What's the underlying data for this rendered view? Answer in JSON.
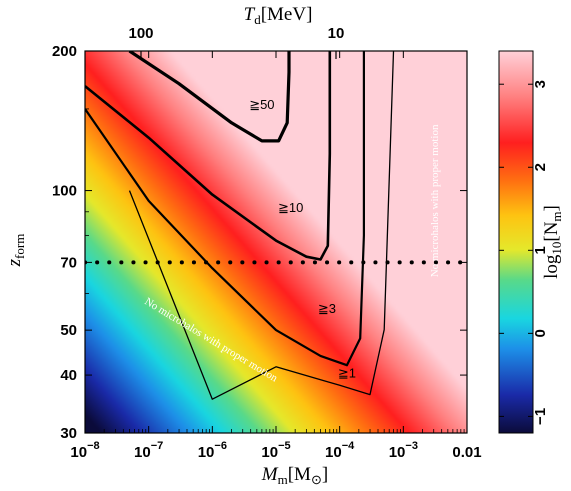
{
  "chart_data": {
    "type": "heatmap",
    "xscale": "log",
    "yscale": "log",
    "xlim": [
      1e-08,
      0.01
    ],
    "ylim": [
      30,
      200
    ],
    "x_ticks": [
      {
        "value": 1e-08,
        "label": "10",
        "exp": "−8"
      },
      {
        "value": 1e-07,
        "label": "10",
        "exp": "−7"
      },
      {
        "value": 1e-06,
        "label": "10",
        "exp": "−6"
      },
      {
        "value": 1e-05,
        "label": "10",
        "exp": "−5"
      },
      {
        "value": 0.0001,
        "label": "10",
        "exp": "−4"
      },
      {
        "value": 0.001,
        "label": "10",
        "exp": "−3"
      },
      {
        "value": 0.01,
        "label": "0.01",
        "exp": ""
      }
    ],
    "y_ticks": [
      {
        "value": 200,
        "label": "200"
      },
      {
        "value": 100,
        "label": "100"
      },
      {
        "value": 70,
        "label": "70"
      },
      {
        "value": 50,
        "label": "50"
      },
      {
        "value": 40,
        "label": "40"
      },
      {
        "value": 30,
        "label": "30"
      }
    ],
    "top_ticks": [
      {
        "value": 100,
        "label": "100"
      },
      {
        "value": 10,
        "label": "10"
      }
    ],
    "xlabel": {
      "main": "M",
      "sub": "m",
      "rest": "[M",
      "sun": "⊙",
      "close": "]"
    },
    "ylabel": {
      "main": "z",
      "sub": "form"
    },
    "toplabel": {
      "main": "T",
      "sub": "d",
      "rest": "[MeV]"
    },
    "colorbar": {
      "label_pre": "log",
      "label_sub1": "10",
      "label_mid": "[N",
      "label_sub2": "m",
      "label_post": "]",
      "range": [
        -1.2,
        3.4
      ],
      "ticks": [
        {
          "value": -1,
          "label": "−1"
        },
        {
          "value": 0,
          "label": "0"
        },
        {
          "value": 1,
          "label": "1"
        },
        {
          "value": 2,
          "label": "2"
        },
        {
          "value": 3,
          "label": "3"
        }
      ]
    },
    "contours": [
      {
        "label": "≧1",
        "level": 0,
        "points": [
          [
            5e-08,
            2.0
          ],
          [
            1e-06,
            1.55
          ],
          [
            1e-05,
            1.62
          ],
          [
            0.0001,
            1.58
          ],
          [
            0.0003,
            1.56
          ],
          [
            0.0005,
            1.7
          ],
          [
            0.0007,
            2.3
          ],
          [
            0.0007,
            200
          ]
        ]
      },
      {
        "label": "≧3",
        "level": 0.48,
        "points": [
          [
            1e-08,
            150
          ],
          [
            1e-07,
            95
          ],
          [
            1e-06,
            68
          ],
          [
            1e-05,
            50
          ],
          [
            5e-05,
            44
          ],
          [
            0.00013,
            42
          ],
          [
            0.00021,
            48
          ],
          [
            0.00024,
            80
          ],
          [
            0.00024,
            200
          ]
        ]
      },
      {
        "label": "≧10",
        "level": 1.0,
        "points": [
          [
            1e-08,
            168
          ],
          [
            1e-07,
            130
          ],
          [
            1e-06,
            98
          ],
          [
            1e-05,
            78
          ],
          [
            3e-05,
            72
          ],
          [
            5e-05,
            71
          ],
          [
            6.5e-05,
            76
          ],
          [
            7e-05,
            120
          ],
          [
            7e-05,
            200
          ]
        ]
      },
      {
        "label": "≧50",
        "level": 1.7,
        "points": [
          [
            5e-08,
            200
          ],
          [
            3e-07,
            170
          ],
          [
            2e-06,
            140
          ],
          [
            6e-06,
            128
          ],
          [
            1.1e-05,
            128
          ],
          [
            1.5e-05,
            140
          ],
          [
            1.6e-05,
            180
          ],
          [
            1.6e-05,
            200
          ]
        ]
      }
    ],
    "contour_label_positions": [
      {
        "label": "≧50",
        "x": 6e-06,
        "y": 150
      },
      {
        "label": "≧10",
        "x": 1.7e-05,
        "y": 90
      },
      {
        "label": "≧3",
        "x": 6.3e-05,
        "y": 54.5
      },
      {
        "label": "≧1",
        "x": 0.00013,
        "y": 39.5
      }
    ],
    "horizontal_line": {
      "y": 70,
      "style": "dotted"
    },
    "annotations": [
      {
        "text": "No microhalos with proper motion",
        "x": 9e-07,
        "y": 47,
        "angle": 31
      },
      {
        "text": "No microhalos with proper motion",
        "x": 0.0035,
        "y": 95,
        "angle": -90
      }
    ]
  }
}
